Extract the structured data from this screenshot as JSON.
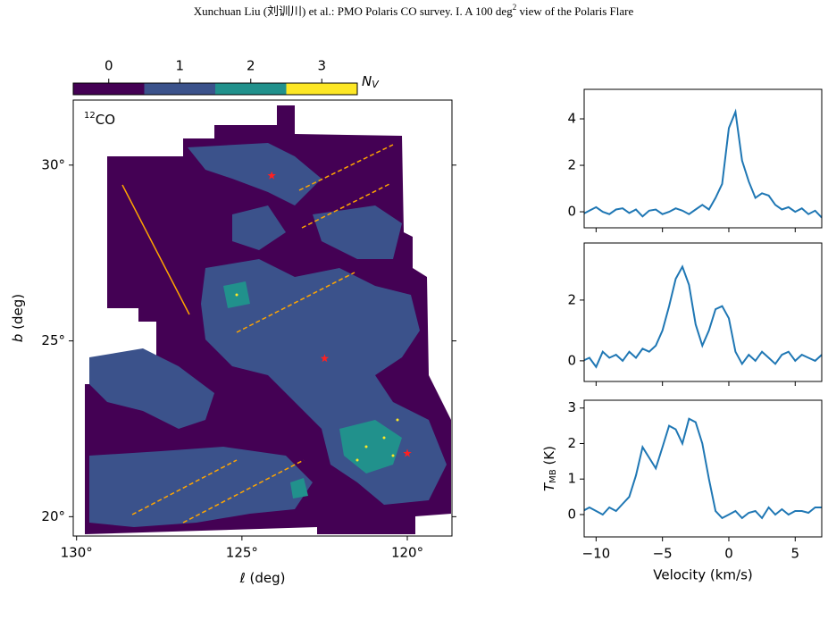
{
  "header": [
    "Xunchuan Liu (刘训川)  et al.: PMO Polaris CO survey. I. A 100 deg",
    "2",
    " view of the Polaris Flare"
  ],
  "chart_data": [
    {
      "type": "map",
      "annotation": [
        "12",
        "CO"
      ],
      "xlabel": [
        "ℓ",
        " (deg)"
      ],
      "ylabel": [
        "b",
        " (deg)"
      ],
      "xlim": [
        130.1,
        118.65
      ],
      "ylim": [
        19.45,
        31.85
      ],
      "xticks": [
        {
          "value": 130,
          "label": "130°"
        },
        {
          "value": 125,
          "label": "125°"
        },
        {
          "value": 120,
          "label": "120°"
        }
      ],
      "yticks": [
        {
          "value": 20,
          "label": "20°"
        },
        {
          "value": 25,
          "label": "25°"
        },
        {
          "value": 30,
          "label": "30°"
        }
      ],
      "markers": {
        "color": "#ff2020",
        "x": [
          124.1,
          122.5,
          120.0
        ],
        "y": [
          29.7,
          24.5,
          21.8
        ]
      },
      "colorbar": {
        "label": [
          "N",
          "V"
        ],
        "lim": [
          -0.5,
          3.5
        ],
        "ticks": [
          0,
          1,
          2,
          3
        ],
        "colors": [
          "#440154",
          "#3b528b",
          "#21918c",
          "#fde725"
        ]
      }
    },
    {
      "type": "line",
      "color": "#1f77b4",
      "xlim": [
        -10.9,
        7.0
      ],
      "ylim": [
        -0.69,
        5.27
      ],
      "yticks": [
        0,
        2,
        4
      ],
      "x": [
        -11,
        -10.5,
        -10,
        -9.5,
        -9,
        -8.5,
        -8,
        -7.5,
        -7,
        -6.5,
        -6,
        -5.5,
        -5,
        -4.5,
        -4,
        -3.5,
        -3,
        -2.5,
        -2,
        -1.5,
        -1,
        -0.5,
        0,
        0.5,
        1,
        1.5,
        2,
        2.5,
        3,
        3.5,
        4,
        4.5,
        5,
        5.5,
        6,
        6.5,
        7
      ],
      "values": [
        -0.1,
        0.05,
        0.2,
        0.0,
        -0.1,
        0.1,
        0.15,
        -0.05,
        0.1,
        -0.2,
        0.05,
        0.1,
        -0.1,
        0.0,
        0.15,
        0.05,
        -0.1,
        0.1,
        0.3,
        0.1,
        0.6,
        1.2,
        3.6,
        4.3,
        2.2,
        1.3,
        0.6,
        0.8,
        0.7,
        0.3,
        0.1,
        0.2,
        0.0,
        0.15,
        -0.1,
        0.05,
        -0.25
      ]
    },
    {
      "type": "line",
      "color": "#1f77b4",
      "xlim": [
        -10.9,
        7.0
      ],
      "ylim": [
        -0.68,
        3.88
      ],
      "yticks": [
        0,
        2
      ],
      "x": [
        -11,
        -10.5,
        -10,
        -9.5,
        -9,
        -8.5,
        -8,
        -7.5,
        -7,
        -6.5,
        -6,
        -5.5,
        -5,
        -4.5,
        -4,
        -3.5,
        -3,
        -2.5,
        -2,
        -1.5,
        -1,
        -0.5,
        0,
        0.5,
        1,
        1.5,
        2,
        2.5,
        3,
        3.5,
        4,
        4.5,
        5,
        5.5,
        6,
        6.5,
        7
      ],
      "values": [
        0.0,
        0.1,
        -0.2,
        0.3,
        0.1,
        0.2,
        0.0,
        0.3,
        0.1,
        0.4,
        0.3,
        0.5,
        1.0,
        1.8,
        2.7,
        3.1,
        2.5,
        1.2,
        0.5,
        1.0,
        1.7,
        1.8,
        1.4,
        0.3,
        -0.1,
        0.2,
        0.0,
        0.3,
        0.1,
        -0.1,
        0.2,
        0.3,
        0.0,
        0.2,
        0.1,
        0.0,
        0.2
      ]
    },
    {
      "type": "line",
      "color": "#1f77b4",
      "xlim": [
        -10.9,
        7.0
      ],
      "ylim": [
        -0.63,
        3.22
      ],
      "yticks": [
        0,
        1,
        2,
        3
      ],
      "xticks": [
        {
          "value": -10,
          "label": "−10"
        },
        {
          "value": -5,
          "label": "−5"
        },
        0,
        5
      ],
      "xlabel": "Velocity (km/s)",
      "ylabel": [
        "T",
        "MB",
        " (K)"
      ],
      "x": [
        -11,
        -10.5,
        -10,
        -9.5,
        -9,
        -8.5,
        -8,
        -7.5,
        -7,
        -6.5,
        -6,
        -5.5,
        -5,
        -4.5,
        -4,
        -3.5,
        -3,
        -2.5,
        -2,
        -1.5,
        -1,
        -0.5,
        0,
        0.5,
        1,
        1.5,
        2,
        2.5,
        3,
        3.5,
        4,
        4.5,
        5,
        5.5,
        6,
        6.5,
        7
      ],
      "values": [
        0.1,
        0.2,
        0.1,
        0.0,
        0.2,
        0.1,
        0.3,
        0.5,
        1.1,
        1.9,
        1.6,
        1.3,
        1.9,
        2.5,
        2.4,
        2.0,
        2.7,
        2.6,
        2.0,
        1.0,
        0.1,
        -0.1,
        0.0,
        0.1,
        -0.1,
        0.05,
        0.1,
        -0.1,
        0.2,
        0.0,
        0.15,
        0.0,
        0.1,
        0.1,
        0.05,
        0.2,
        0.2
      ]
    }
  ]
}
